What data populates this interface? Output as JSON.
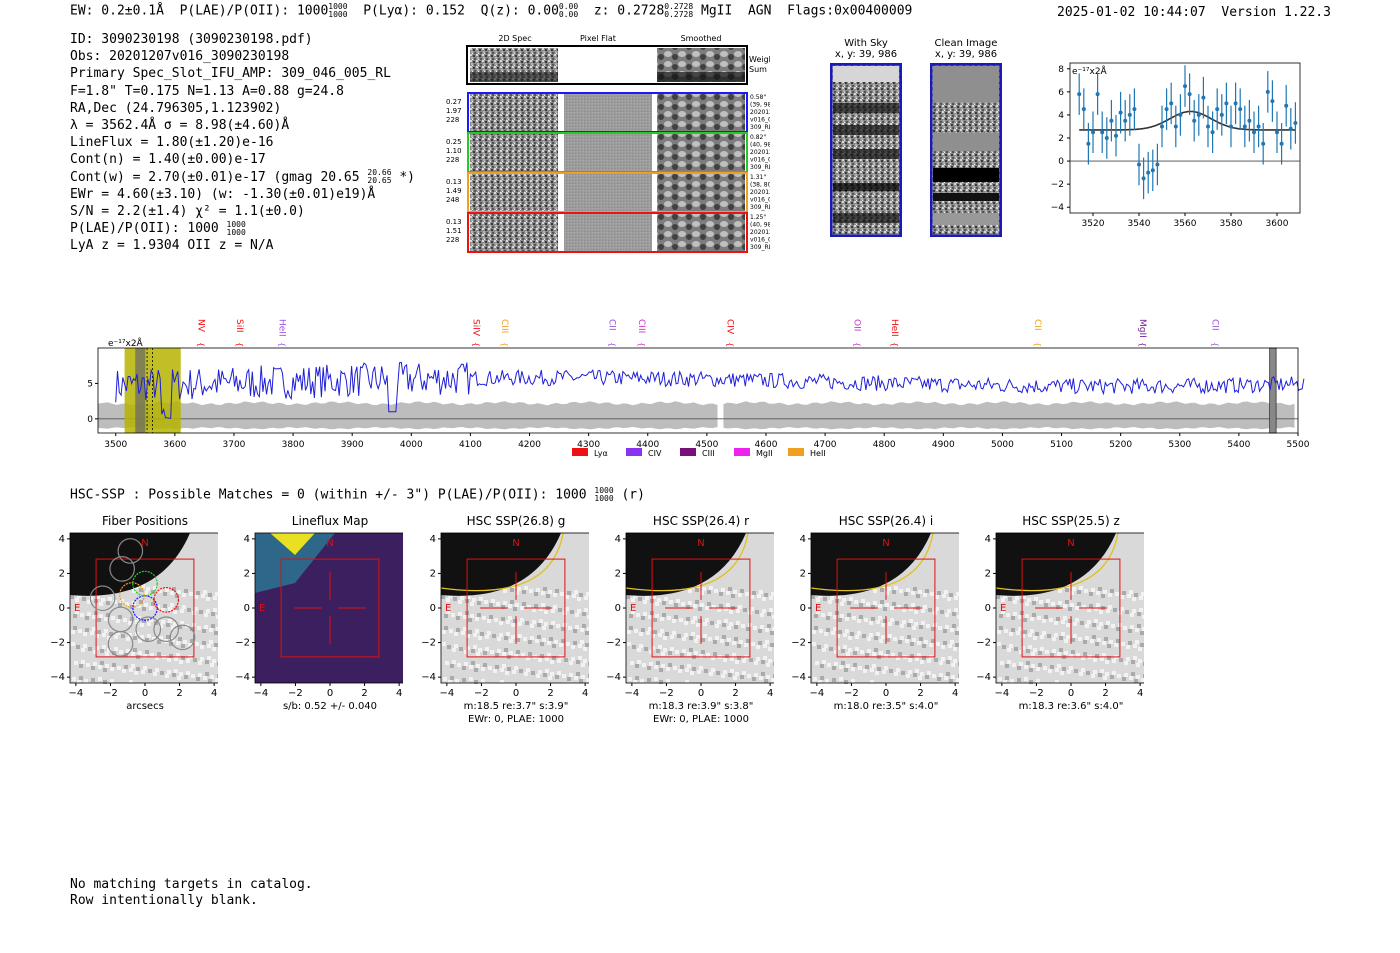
{
  "header": {
    "ew": "EW: 0.2±0.1Å",
    "plae_label": "P(LAE)/P(OII): 1000",
    "plae_hi": "1000",
    "plae_lo": "1000",
    "plya": "P(Lyα): 0.152",
    "qz_label": "Q(z): 0.00",
    "qz_hi": "0.00",
    "qz_lo": "0.00",
    "z_label": "z: 0.2728",
    "z_hi": "0.2728",
    "z_lo": "0.2728",
    "z_line": "MgII",
    "agn": "AGN",
    "flags": "Flags:0x00400009",
    "timestamp": "2025-01-02 10:44:07",
    "version": "Version 1.22.3"
  },
  "info": {
    "id": "ID: 3090230198 (3090230198.pdf)",
    "obs": "Obs: 20201207v016_3090230198",
    "primary": "Primary Spec_Slot_IFU_AMP: 309_046_005_RL",
    "fiber": "F=1.8\"  T=0.175  N=1.13  A=0.88  g=24.8",
    "radec": "RA,Dec (24.796305,1.123902)",
    "lambda": "λ = 3562.4Å   σ = 8.98(±4.60)Å",
    "lineflux": "LineFlux = 1.80(±1.20)e-16",
    "contn": "Cont(n) = 1.40(±0.00)e-17",
    "contw": "Cont(w) = 2.70(±0.01)e-17 (gmag 20.65",
    "contw_hi": "20.66",
    "contw_lo": "20.65",
    "contw_end": "*)",
    "ewr": "EWr = 4.60(±3.10) (w: -1.30(±0.01)e19)Å",
    "sn": "S/N = 2.2(±1.4)  χ² = 1.1(±0.0)",
    "plae": "P(LAE)/P(OII): 1000",
    "plae_hi": "1000",
    "plae_lo": "1000",
    "lya": "LyA z = 1.9304  OII z = N/A"
  },
  "cutouts": {
    "col_headers": [
      "2D Spec",
      "Pixel Flat",
      "Smoothed"
    ],
    "weighted_sum": "Weighted\nSum",
    "rows": [
      {
        "left": [
          "0.27",
          "1.97",
          "228"
        ],
        "right": [
          "0.58\"",
          "(39, 986)",
          "20201207",
          "v016_02",
          "309_RL_109"
        ],
        "color": "#1a1aff"
      },
      {
        "left": [
          "0.25",
          "1.10",
          "228"
        ],
        "right": [
          "0.82\"",
          "(40, 986)",
          "20201207",
          "v016_01",
          "309_RL_109"
        ],
        "color": "#22cc22"
      },
      {
        "left": [
          "0.13",
          "1.49",
          "248"
        ],
        "right": [
          "1.31\"",
          "(38, 807)",
          "20201207",
          "v016_03",
          "309_RL_089"
        ],
        "color": "#f0a020"
      },
      {
        "left": [
          "0.13",
          "1.51",
          "228"
        ],
        "right": [
          "1.25\"",
          "(40, 986)",
          "20201207",
          "v016_03",
          "309_RL_109"
        ],
        "color": "#ee1111"
      }
    ],
    "with_sky_title": "With Sky",
    "with_sky_sub": "x, y: 39, 986",
    "clean_title": "Clean Image",
    "clean_sub": "x, y: 39, 986"
  },
  "hsc_header": {
    "text": "HSC-SSP : Possible Matches = 0 (within +/- 3\")  P(LAE)/P(OII): 1000",
    "hi": "1000",
    "lo": "1000",
    "end": "(r)"
  },
  "panels": [
    {
      "title": "Fiber Positions",
      "caption1": "arcsecs",
      "caption2": ""
    },
    {
      "title": "Lineflux Map",
      "caption1": "s/b: 0.52 +/- 0.040",
      "caption2": ""
    },
    {
      "title": "HSC SSP(26.8) g",
      "caption1": "m:18.5  re:3.7\"  s:3.9\"",
      "caption2": "EWr: 0, PLAE: 1000"
    },
    {
      "title": "HSC SSP(26.4) r",
      "caption1": "m:18.3  re:3.9\"  s:3.8\"",
      "caption2": "EWr: 0, PLAE: 1000"
    },
    {
      "title": "HSC SSP(26.4) i",
      "caption1": "m:18.0  re:3.5\"  s:4.0\"",
      "caption2": ""
    },
    {
      "title": "HSC SSP(25.5) z",
      "caption1": "m:18.3  re:3.6\"  s:4.0\"",
      "caption2": ""
    }
  ],
  "panel_axes": {
    "ticks": [
      "−4",
      "−2",
      "0",
      "2",
      "4"
    ],
    "N": "N",
    "E": "E"
  },
  "notes": [
    "No matching targets in catalog.",
    "Row intentionally blank."
  ],
  "colors": {
    "line": "#1f1fd8",
    "fit_points": "#1f77b4",
    "noise": "#bdbdbd",
    "highlight": "#b5b500"
  },
  "chart_data": [
    {
      "type": "scatter",
      "title": "",
      "ylabel": "e⁻¹⁷x2Å",
      "xlim": [
        3510,
        3610
      ],
      "ylim": [
        -4.5,
        8.5
      ],
      "xticks": [
        3520,
        3540,
        3560,
        3580,
        3600
      ],
      "yticks": [
        -4,
        -2,
        0,
        2,
        4,
        6,
        8
      ],
      "x": [
        3514,
        3516,
        3518,
        3520,
        3522,
        3524,
        3526,
        3528,
        3530,
        3532,
        3534,
        3536,
        3538,
        3540,
        3542,
        3544,
        3546,
        3548,
        3550,
        3552,
        3554,
        3556,
        3558,
        3560,
        3562,
        3564,
        3566,
        3568,
        3570,
        3572,
        3574,
        3576,
        3578,
        3580,
        3582,
        3584,
        3586,
        3588,
        3590,
        3592,
        3594,
        3596,
        3598,
        3600,
        3602,
        3604,
        3606,
        3608
      ],
      "y": [
        5.8,
        4.5,
        1.5,
        2.5,
        5.8,
        2.5,
        2.0,
        3.5,
        2.2,
        4.2,
        3.5,
        4.0,
        4.5,
        -0.3,
        -1.5,
        -1.0,
        -0.8,
        -0.3,
        3.0,
        4.5,
        5.0,
        3.0,
        4.0,
        6.5,
        5.8,
        3.5,
        4.0,
        5.5,
        3.0,
        2.5,
        4.5,
        4.0,
        5.0,
        3.0,
        5.0,
        4.5,
        3.0,
        3.5,
        2.5,
        3.0,
        1.5,
        6.0,
        5.2,
        2.5,
        1.5,
        4.8,
        2.8,
        3.3
      ],
      "yerr": [
        1.8,
        1.8,
        1.8,
        1.8,
        1.8,
        1.8,
        1.8,
        1.8,
        1.8,
        1.8,
        1.8,
        1.8,
        1.8,
        1.8,
        1.8,
        1.8,
        1.8,
        1.8,
        1.8,
        1.8,
        1.8,
        1.8,
        1.8,
        1.8,
        1.8,
        1.8,
        1.8,
        1.8,
        1.8,
        1.8,
        1.8,
        1.8,
        1.8,
        1.8,
        1.8,
        1.8,
        1.8,
        1.8,
        1.8,
        1.8,
        1.8,
        1.8,
        1.8,
        1.8,
        1.8,
        1.8,
        1.8,
        1.8
      ],
      "model": {
        "continuum": 2.7,
        "amplitude": 1.6,
        "center": 3562.4,
        "sigma": 8.98
      }
    },
    {
      "type": "line",
      "title": "",
      "ylabel": "e⁻¹⁷x2Å",
      "xlim": [
        3470,
        5500
      ],
      "ylim": [
        -2,
        10
      ],
      "xticks": [
        3500,
        3600,
        3700,
        3800,
        3900,
        4000,
        4100,
        4200,
        4300,
        4400,
        4500,
        4600,
        4700,
        4800,
        4900,
        5000,
        5100,
        5200,
        5300,
        5400,
        5500
      ],
      "yticks": [
        0,
        5
      ],
      "highlight": [
        3515,
        3610
      ],
      "gap": [
        4518,
        4528
      ],
      "masked": [
        5452,
        5463
      ],
      "lines": [
        {
          "name": "NV",
          "x": 3635,
          "color": "#ee1111"
        },
        {
          "name": "SiII",
          "x": 3700,
          "color": "#ee1111"
        },
        {
          "name": "HeII",
          "x": 3772,
          "color": "#9955dd"
        },
        {
          "name": "SiIV",
          "x": 4100,
          "color": "#ee1111"
        },
        {
          "name": "CIII",
          "x": 4148,
          "color": "#f0a020"
        },
        {
          "name": "CII",
          "x": 4330,
          "color": "#9955dd"
        },
        {
          "name": "CIII",
          "x": 4380,
          "color": "#cc33cc"
        },
        {
          "name": "CIV",
          "x": 4530,
          "color": "#ee1111"
        },
        {
          "name": "OII",
          "x": 4745,
          "color": "#cc33cc"
        },
        {
          "name": "HeII",
          "x": 4808,
          "color": "#ee1111"
        },
        {
          "name": "CII",
          "x": 5050,
          "color": "#f0a020"
        },
        {
          "name": "MgII",
          "x": 5228,
          "color": "#7a1f9a"
        },
        {
          "name": "CII",
          "x": 5350,
          "color": "#9955dd"
        }
      ],
      "legend": [
        {
          "name": "Lyα",
          "color": "#ee1111"
        },
        {
          "name": "CIV",
          "color": "#8833ee"
        },
        {
          "name": "CIII",
          "color": "#771177"
        },
        {
          "name": "MgII",
          "color": "#ee22ee"
        },
        {
          "name": "HeII",
          "color": "#f0a020"
        }
      ]
    }
  ]
}
